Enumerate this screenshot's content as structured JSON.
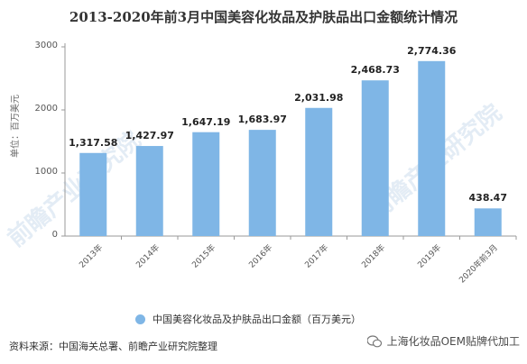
{
  "title": "2013-2020年前3月中国美容化妆品及护肤品出口金额统计情况",
  "source": "资料来源：中国海关总署、前瞻产业研究院整理",
  "brand": "上海化妆品OEM贴牌代加工",
  "watermark": "前瞻产业研究院",
  "colors": {
    "bar": "#7fb6e6",
    "axis": "#999999"
  },
  "chart_data": {
    "type": "bar",
    "categories": [
      "2013年",
      "2014年",
      "2015年",
      "2016年",
      "2017年",
      "2018年",
      "2019年",
      "2020年前3月"
    ],
    "series": [
      {
        "name": "中国美容化妆品及护肤品出口金额（百万美元）",
        "values": [
          1317.58,
          1427.97,
          1647.19,
          1683.97,
          2031.98,
          2468.73,
          2774.36,
          438.47
        ]
      }
    ],
    "value_labels": [
      "1,317.58",
      "1,427.97",
      "1,647.19",
      "1,683.97",
      "2,031.98",
      "2,468.73",
      "2,774.36",
      "438.47"
    ],
    "ylabel": "单位：百万美元",
    "ylim": [
      0,
      3000
    ],
    "yticks": [
      0,
      1000,
      2000,
      3000
    ],
    "grid": false,
    "legend_position": "bottom"
  }
}
